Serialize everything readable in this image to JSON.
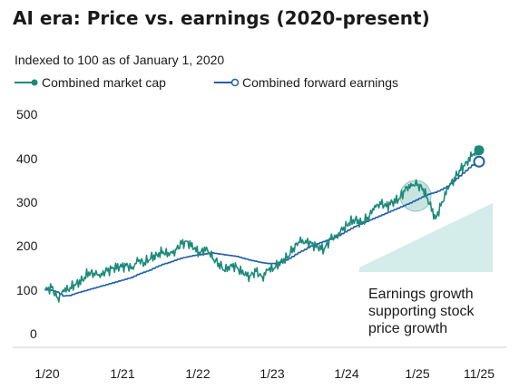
{
  "chart_data": {
    "type": "line",
    "title": "AI era: Price vs. earnings (2020-present)",
    "subtitle": "Indexed to 100 as of January 1, 2020",
    "ylim": [
      0,
      500
    ],
    "y_ticks": [
      "500",
      "400",
      "300",
      "200",
      "100",
      "0"
    ],
    "x_ticks": [
      "1/20",
      "1/21",
      "1/22",
      "1/23",
      "1/24",
      "1/25",
      "11/25"
    ],
    "annotation": [
      "Earnings growth",
      "supporting stock",
      "price growth"
    ],
    "colors": {
      "market_cap": "#1d8a79",
      "forward_earnings": "#1f5fa8",
      "wedge": "#d4ecea",
      "highlight": "#b7dbd6"
    },
    "series": [
      {
        "name": "Combined market cap",
        "marker": "filled-circle",
        "points": [
          [
            "2020-01",
            100
          ],
          [
            "2020-02",
            105
          ],
          [
            "2020-03",
            82
          ],
          [
            "2020-04",
            96
          ],
          [
            "2020-05",
            105
          ],
          [
            "2020-06",
            114
          ],
          [
            "2020-07",
            122
          ],
          [
            "2020-08",
            140
          ],
          [
            "2020-09",
            133
          ],
          [
            "2020-10",
            137
          ],
          [
            "2020-11",
            143
          ],
          [
            "2020-12",
            150
          ],
          [
            "2021-01",
            152
          ],
          [
            "2021-02",
            155
          ],
          [
            "2021-03",
            152
          ],
          [
            "2021-04",
            165
          ],
          [
            "2021-05",
            162
          ],
          [
            "2021-06",
            172
          ],
          [
            "2021-07",
            180
          ],
          [
            "2021-08",
            187
          ],
          [
            "2021-09",
            178
          ],
          [
            "2021-10",
            192
          ],
          [
            "2021-11",
            205
          ],
          [
            "2021-12",
            210
          ],
          [
            "2022-01",
            193
          ],
          [
            "2022-02",
            183
          ],
          [
            "2022-03",
            197
          ],
          [
            "2022-04",
            170
          ],
          [
            "2022-05",
            160
          ],
          [
            "2022-06",
            142
          ],
          [
            "2022-07",
            158
          ],
          [
            "2022-08",
            150
          ],
          [
            "2022-09",
            135
          ],
          [
            "2022-10",
            132
          ],
          [
            "2022-11",
            142
          ],
          [
            "2022-12",
            130
          ],
          [
            "2023-01",
            145
          ],
          [
            "2023-02",
            150
          ],
          [
            "2023-03",
            165
          ],
          [
            "2023-04",
            172
          ],
          [
            "2023-05",
            195
          ],
          [
            "2023-06",
            208
          ],
          [
            "2023-07",
            212
          ],
          [
            "2023-08",
            205
          ],
          [
            "2023-09",
            196
          ],
          [
            "2023-10",
            193
          ],
          [
            "2023-11",
            215
          ],
          [
            "2023-12",
            225
          ],
          [
            "2024-01",
            236
          ],
          [
            "2024-02",
            252
          ],
          [
            "2024-03",
            260
          ],
          [
            "2024-04",
            252
          ],
          [
            "2024-05",
            265
          ],
          [
            "2024-06",
            282
          ],
          [
            "2024-07",
            300
          ],
          [
            "2024-08",
            290
          ],
          [
            "2024-09",
            300
          ],
          [
            "2024-10",
            305
          ],
          [
            "2024-11",
            325
          ],
          [
            "2024-12",
            342
          ],
          [
            "2025-01",
            338
          ],
          [
            "2025-02",
            330
          ],
          [
            "2025-03",
            295
          ],
          [
            "2025-04",
            262
          ],
          [
            "2025-05",
            300
          ],
          [
            "2025-06",
            330
          ],
          [
            "2025-07",
            355
          ],
          [
            "2025-08",
            372
          ],
          [
            "2025-09",
            392
          ],
          [
            "2025-10",
            408
          ],
          [
            "2025-11",
            418
          ]
        ]
      },
      {
        "name": "Combined forward earnings",
        "marker": "open-circle",
        "points": [
          [
            "2020-01",
            100
          ],
          [
            "2020-02",
            99
          ],
          [
            "2020-03",
            95
          ],
          [
            "2020-04",
            86
          ],
          [
            "2020-05",
            87
          ],
          [
            "2020-06",
            92
          ],
          [
            "2020-07",
            96
          ],
          [
            "2020-08",
            100
          ],
          [
            "2020-09",
            104
          ],
          [
            "2020-10",
            108
          ],
          [
            "2020-11",
            112
          ],
          [
            "2020-12",
            116
          ],
          [
            "2021-01",
            120
          ],
          [
            "2021-02",
            124
          ],
          [
            "2021-03",
            128
          ],
          [
            "2021-04",
            135
          ],
          [
            "2021-05",
            140
          ],
          [
            "2021-06",
            145
          ],
          [
            "2021-07",
            152
          ],
          [
            "2021-08",
            158
          ],
          [
            "2021-09",
            162
          ],
          [
            "2021-10",
            167
          ],
          [
            "2021-11",
            172
          ],
          [
            "2021-12",
            175
          ],
          [
            "2022-01",
            178
          ],
          [
            "2022-02",
            180
          ],
          [
            "2022-03",
            182
          ],
          [
            "2022-04",
            184
          ],
          [
            "2022-05",
            182
          ],
          [
            "2022-06",
            180
          ],
          [
            "2022-07",
            178
          ],
          [
            "2022-08",
            176
          ],
          [
            "2022-09",
            172
          ],
          [
            "2022-10",
            168
          ],
          [
            "2022-11",
            165
          ],
          [
            "2022-12",
            162
          ],
          [
            "2023-01",
            160
          ],
          [
            "2023-02",
            160
          ],
          [
            "2023-03",
            163
          ],
          [
            "2023-04",
            168
          ],
          [
            "2023-05",
            176
          ],
          [
            "2023-06",
            185
          ],
          [
            "2023-07",
            192
          ],
          [
            "2023-08",
            200
          ],
          [
            "2023-09",
            205
          ],
          [
            "2023-10",
            210
          ],
          [
            "2023-11",
            215
          ],
          [
            "2023-12",
            220
          ],
          [
            "2024-01",
            228
          ],
          [
            "2024-02",
            236
          ],
          [
            "2024-03",
            244
          ],
          [
            "2024-04",
            250
          ],
          [
            "2024-05",
            256
          ],
          [
            "2024-06",
            262
          ],
          [
            "2024-07",
            268
          ],
          [
            "2024-08",
            274
          ],
          [
            "2024-09",
            280
          ],
          [
            "2024-10",
            286
          ],
          [
            "2024-11",
            292
          ],
          [
            "2024-12",
            298
          ],
          [
            "2025-01",
            305
          ],
          [
            "2025-02",
            312
          ],
          [
            "2025-03",
            318
          ],
          [
            "2025-04",
            322
          ],
          [
            "2025-05",
            328
          ],
          [
            "2025-06",
            336
          ],
          [
            "2025-07",
            348
          ],
          [
            "2025-08",
            360
          ],
          [
            "2025-09",
            372
          ],
          [
            "2025-10",
            384
          ],
          [
            "2025-11",
            392
          ]
        ]
      }
    ]
  }
}
